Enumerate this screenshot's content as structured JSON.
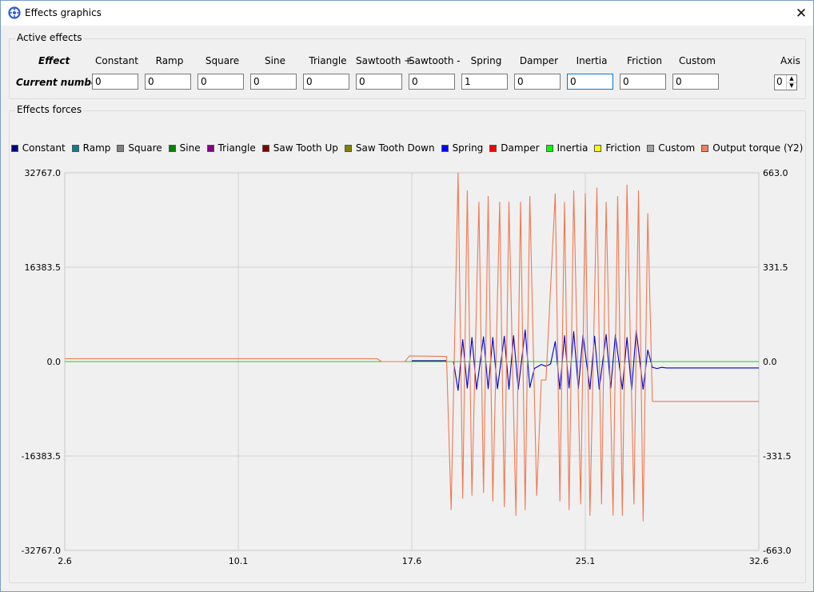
{
  "window": {
    "title": "Effects graphics",
    "close_icon": "close-icon"
  },
  "active_effects": {
    "group_title": "Active effects",
    "effect_label": "Effect",
    "current_label": "Current number",
    "effects": [
      {
        "name": "Constant",
        "value": "0"
      },
      {
        "name": "Ramp",
        "value": "0"
      },
      {
        "name": "Square",
        "value": "0"
      },
      {
        "name": "Sine",
        "value": "0"
      },
      {
        "name": "Triangle",
        "value": "0"
      },
      {
        "name": "Sawtooth +",
        "value": "0"
      },
      {
        "name": "Sawtooth -",
        "value": "0"
      },
      {
        "name": "Spring",
        "value": "1"
      },
      {
        "name": "Damper",
        "value": "0"
      },
      {
        "name": "Inertia",
        "value": "0"
      },
      {
        "name": "Friction",
        "value": "0"
      },
      {
        "name": "Custom",
        "value": "0"
      }
    ],
    "axis_label": "Axis",
    "axis_value": "0"
  },
  "effects_forces": {
    "group_title": "Effects forces"
  },
  "chart_data": {
    "type": "line",
    "legend": [
      {
        "name": "Constant",
        "color": "#000080"
      },
      {
        "name": "Ramp",
        "color": "#0d7f8a"
      },
      {
        "name": "Square",
        "color": "#808080"
      },
      {
        "name": "Sine",
        "color": "#008000"
      },
      {
        "name": "Triangle",
        "color": "#800080"
      },
      {
        "name": "Saw Tooth Up",
        "color": "#800000"
      },
      {
        "name": "Saw Tooth Down",
        "color": "#808000"
      },
      {
        "name": "Spring",
        "color": "#0000ff"
      },
      {
        "name": "Damper",
        "color": "#ff0000"
      },
      {
        "name": "Inertia",
        "color": "#00ff00"
      },
      {
        "name": "Friction",
        "color": "#ffff00"
      },
      {
        "name": "Custom",
        "color": "#a0a0a0"
      },
      {
        "name": "Output torque (Y2)",
        "color": "#f08060"
      }
    ],
    "xlim": [
      2.6,
      32.6
    ],
    "x_ticks": [
      "2.6",
      "10.1",
      "17.6",
      "25.1",
      "32.6"
    ],
    "ylim": [
      -32767.0,
      32767.0
    ],
    "y_ticks": [
      "32767.0",
      "16383.5",
      "0.0",
      "-16383.5",
      "-32767.0"
    ],
    "y2lim": [
      -663.0,
      663.0
    ],
    "y2_ticks": [
      "663.0",
      "331.5",
      "0.0",
      "-331.5",
      "-663.0"
    ],
    "grid": true,
    "legend_position": "top",
    "series": [
      {
        "name": "Inertia",
        "axis": "y",
        "color": "#22cc22",
        "x": [
          2.6,
          32.6
        ],
        "y": [
          0,
          0
        ]
      },
      {
        "name": "Constant",
        "axis": "y",
        "color": "#000080",
        "x": [
          17.6,
          19.1
        ],
        "y": [
          150,
          150
        ]
      },
      {
        "name": "Spring",
        "axis": "y",
        "color": "#0000cc",
        "x": [
          19.4,
          19.6,
          19.8,
          20.0,
          20.2,
          20.4,
          20.7,
          20.9,
          21.1,
          21.3,
          21.6,
          21.8,
          22.0,
          22.2,
          22.5,
          22.7,
          22.9,
          23.2,
          23.4,
          23.6,
          23.8,
          24.0,
          24.2,
          24.4,
          24.6,
          24.8,
          25.0,
          25.3,
          25.5,
          25.7,
          26.0,
          26.2,
          26.4,
          26.7,
          26.9,
          27.1,
          27.3,
          27.6,
          27.8,
          28.0,
          28.2,
          28.4,
          28.6,
          29.0,
          32.6
        ],
        "y": [
          0,
          -5000,
          3800,
          -4600,
          4200,
          -4800,
          4300,
          -4700,
          4200,
          -4700,
          4400,
          -4800,
          4500,
          -4800,
          5500,
          -4500,
          -1200,
          -500,
          -800,
          -400,
          3500,
          -4800,
          4500,
          -4600,
          5200,
          -4700,
          4600,
          -4800,
          4400,
          -4800,
          4700,
          -4600,
          4700,
          -4800,
          4200,
          -4900,
          5400,
          -4800,
          2000,
          -1000,
          -1200,
          -1000,
          -1100,
          -1100,
          -1100
        ]
      },
      {
        "name": "Output torque (Y2)",
        "axis": "y2",
        "color": "#f07850",
        "x": [
          2.6,
          16.1,
          16.3,
          17.3,
          17.5,
          19.1,
          19.3,
          19.6,
          19.8,
          20.0,
          20.2,
          20.5,
          20.7,
          20.9,
          21.1,
          21.4,
          21.6,
          21.8,
          22.1,
          22.3,
          22.5,
          22.7,
          23.0,
          23.2,
          23.4,
          23.8,
          24.0,
          24.2,
          24.4,
          24.6,
          24.9,
          25.1,
          25.3,
          25.6,
          25.8,
          26.0,
          26.3,
          26.5,
          26.7,
          26.9,
          27.2,
          27.4,
          27.6,
          27.8,
          28.0,
          28.2,
          28.3,
          32.6
        ],
        "y": [
          10,
          10,
          0,
          0,
          20,
          18,
          -520,
          663,
          -480,
          600,
          -470,
          560,
          -460,
          580,
          -490,
          560,
          -510,
          560,
          -540,
          560,
          -520,
          580,
          -470,
          -65,
          -65,
          590,
          -490,
          560,
          -520,
          600,
          -500,
          590,
          -540,
          610,
          -500,
          560,
          -540,
          580,
          -540,
          620,
          -500,
          600,
          -560,
          520,
          -140,
          -140,
          -140,
          -140
        ]
      }
    ]
  }
}
